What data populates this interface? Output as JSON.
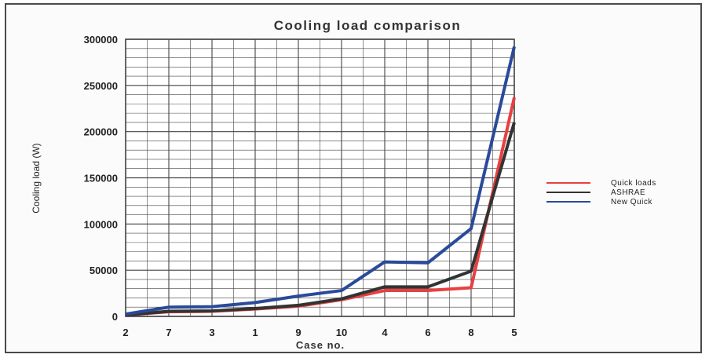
{
  "chart_data": {
    "type": "line",
    "title": "Cooling load comparison",
    "xlabel": "Case no.",
    "ylabel": "Cooling load (W)",
    "categories": [
      "2",
      "7",
      "3",
      "1",
      "9",
      "10",
      "4",
      "6",
      "8",
      "5"
    ],
    "ylim": [
      0,
      300000
    ],
    "yticks": [
      "0",
      "50000",
      "100000",
      "150000",
      "200000",
      "250000",
      "300000"
    ],
    "grid": true,
    "legend_position": "right",
    "series": [
      {
        "name": "Quick loads",
        "color": "#e84040",
        "values": [
          1500,
          5000,
          5500,
          8000,
          11000,
          18000,
          28000,
          28000,
          31000,
          237000
        ]
      },
      {
        "name": "ASHRAE",
        "color": "#333333",
        "values": [
          1500,
          5500,
          6000,
          8500,
          12000,
          19000,
          32000,
          32000,
          49000,
          210000
        ]
      },
      {
        "name": "New Quick",
        "color": "#2a4a9a",
        "values": [
          2500,
          10000,
          10500,
          15000,
          22000,
          28000,
          59000,
          58000,
          95000,
          292000
        ]
      }
    ]
  }
}
